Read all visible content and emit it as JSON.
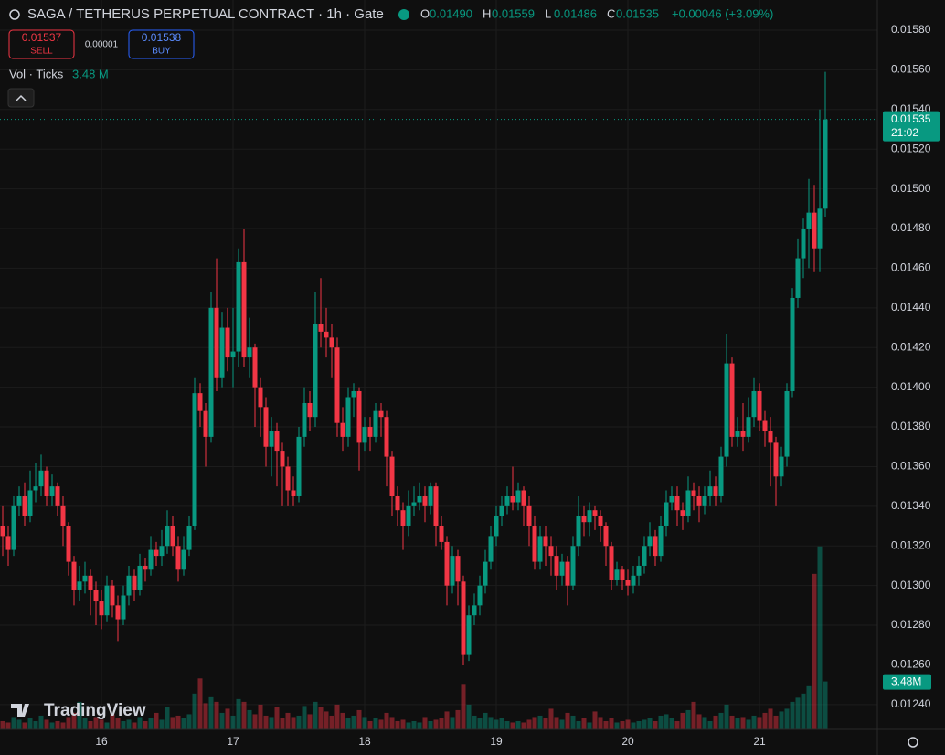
{
  "chart_data": {
    "type": "candlestick",
    "title": "SAGA / TETHERUS PERPETUAL CONTRACT · 1h · Gate",
    "ohlc_legend": [
      {
        "key": "O",
        "value": "0.01490"
      },
      {
        "key": "H",
        "value": "0.01559"
      },
      {
        "key": "L",
        "value": "0.01486"
      },
      {
        "key": "C",
        "value": "0.01535"
      }
    ],
    "change": "+0.00046 (+3.09%)",
    "order_buttons": {
      "sell_price": "0.01537",
      "sell_label": "SELL",
      "spread": "0.00001",
      "buy_price": "0.01538",
      "buy_label": "BUY"
    },
    "last_price_label": "0.01535",
    "countdown": "21:02",
    "watermark": "TradingView",
    "up_color": "#089981",
    "down_color": "#f23645",
    "grid": true,
    "ylim": [
      0.012275,
      0.015952
    ],
    "yticks": [
      {
        "value": 0.0124,
        "label": "0.01240"
      },
      {
        "value": 0.0126,
        "label": "0.01260"
      },
      {
        "value": 0.0128,
        "label": "0.01280"
      },
      {
        "value": 0.013,
        "label": "0.01300"
      },
      {
        "value": 0.0132,
        "label": "0.01320"
      },
      {
        "value": 0.0134,
        "label": "0.01340"
      },
      {
        "value": 0.0136,
        "label": "0.01360"
      },
      {
        "value": 0.0138,
        "label": "0.01380"
      },
      {
        "value": 0.014,
        "label": "0.01400"
      },
      {
        "value": 0.0142,
        "label": "0.01420"
      },
      {
        "value": 0.0144,
        "label": "0.01440"
      },
      {
        "value": 0.0146,
        "label": "0.01460"
      },
      {
        "value": 0.0148,
        "label": "0.01480"
      },
      {
        "value": 0.015,
        "label": "0.01500"
      },
      {
        "value": 0.0152,
        "label": "0.01520"
      },
      {
        "value": 0.0154,
        "label": "0.01540"
      },
      {
        "value": 0.0156,
        "label": "0.01560"
      },
      {
        "value": 0.0158,
        "label": "0.01580"
      }
    ],
    "categories": [
      null,
      null,
      null,
      null,
      null,
      null,
      null,
      null,
      null,
      null,
      null,
      null,
      null,
      null,
      null,
      null,
      null,
      null,
      "16",
      null,
      null,
      null,
      null,
      null,
      null,
      null,
      null,
      null,
      null,
      null,
      null,
      null,
      null,
      null,
      null,
      null,
      null,
      null,
      null,
      null,
      null,
      null,
      "17",
      null,
      null,
      null,
      null,
      null,
      null,
      null,
      null,
      null,
      null,
      null,
      null,
      null,
      null,
      null,
      null,
      null,
      null,
      null,
      null,
      null,
      null,
      null,
      "18",
      null,
      null,
      null,
      null,
      null,
      null,
      null,
      null,
      null,
      null,
      null,
      null,
      null,
      null,
      null,
      null,
      null,
      null,
      null,
      null,
      null,
      null,
      null,
      "19",
      null,
      null,
      null,
      null,
      null,
      null,
      null,
      null,
      null,
      null,
      null,
      null,
      null,
      null,
      null,
      null,
      null,
      null,
      null,
      null,
      null,
      null,
      null,
      "20",
      null,
      null,
      null,
      null,
      null,
      null,
      null,
      null,
      null,
      null,
      null,
      null,
      null,
      null,
      null,
      null,
      null,
      null,
      null,
      null,
      null,
      null,
      null,
      "21",
      null,
      null,
      null,
      null,
      null,
      null,
      null,
      null,
      null,
      null,
      null,
      null
    ],
    "open": [
      0.0133,
      0.01325,
      0.01318,
      0.0134,
      0.01345,
      0.01335,
      0.01348,
      0.0135,
      0.01358,
      0.01345,
      0.0135,
      0.0134,
      0.0133,
      0.01312,
      0.01298,
      0.01302,
      0.01305,
      0.01298,
      0.01292,
      0.01285,
      0.013,
      0.0129,
      0.01283,
      0.01295,
      0.01305,
      0.01298,
      0.0131,
      0.01308,
      0.01318,
      0.01315,
      0.0132,
      0.0133,
      0.0132,
      0.01308,
      0.01318,
      0.0133,
      0.01397,
      0.01388,
      0.01375,
      0.0144,
      0.01405,
      0.0143,
      0.01415,
      0.01418,
      0.01463,
      0.01415,
      0.0142,
      0.014,
      0.0139,
      0.0137,
      0.01378,
      0.01368,
      0.0136,
      0.01348,
      0.01345,
      0.01375,
      0.01392,
      0.01385,
      0.01432,
      0.01428,
      0.01425,
      0.0142,
      0.01382,
      0.01375,
      0.01395,
      0.01398,
      0.01372,
      0.0138,
      0.01375,
      0.01388,
      0.01385,
      0.01365,
      0.01345,
      0.01338,
      0.0133,
      0.0134,
      0.01342,
      0.01345,
      0.0134,
      0.0135,
      0.0133,
      0.01322,
      0.013,
      0.01315,
      0.01302,
      0.01265,
      0.01285,
      0.0129,
      0.013,
      0.01312,
      0.01325,
      0.01335,
      0.0134,
      0.01345,
      0.01342,
      0.01348,
      0.0134,
      0.0133,
      0.01312,
      0.01325,
      0.0132,
      0.01315,
      0.01305,
      0.01312,
      0.013,
      0.0132,
      0.01335,
      0.01332,
      0.01338,
      0.01335,
      0.0133,
      0.0132,
      0.01303,
      0.01308,
      0.01303,
      0.013,
      0.01305,
      0.0131,
      0.0132,
      0.01325,
      0.01315,
      0.0133,
      0.01342,
      0.01345,
      0.01338,
      0.01335,
      0.01348,
      0.01345,
      0.0134,
      0.01345,
      0.0135,
      0.01345,
      0.01365,
      0.01412,
      0.01375,
      0.01378,
      0.01375,
      0.01385,
      0.01398,
      0.01383,
      0.01378,
      0.01372,
      0.01355,
      0.01365,
      0.01398,
      0.01445,
      0.01465,
      0.0148,
      0.01488,
      0.0147,
      0.0149
    ],
    "high": [
      0.0134,
      0.0133,
      0.01345,
      0.0135,
      0.01352,
      0.01358,
      0.01362,
      0.01366,
      0.0136,
      0.01356,
      0.01352,
      0.01345,
      0.01332,
      0.01315,
      0.0131,
      0.01312,
      0.01308,
      0.01302,
      0.01298,
      0.01305,
      0.01303,
      0.01295,
      0.013,
      0.0131,
      0.01308,
      0.01316,
      0.01314,
      0.01325,
      0.01322,
      0.01328,
      0.01338,
      0.01335,
      0.01325,
      0.01325,
      0.01335,
      0.01405,
      0.01402,
      0.01392,
      0.01448,
      0.01465,
      0.01438,
      0.0144,
      0.0144,
      0.0147,
      0.0148,
      0.01435,
      0.01422,
      0.01405,
      0.01395,
      0.01385,
      0.01382,
      0.01372,
      0.01365,
      0.01355,
      0.0138,
      0.014,
      0.01398,
      0.01448,
      0.01455,
      0.0144,
      0.01432,
      0.01425,
      0.0139,
      0.014,
      0.01402,
      0.014,
      0.01385,
      0.01385,
      0.01392,
      0.01392,
      0.01388,
      0.01368,
      0.0135,
      0.01342,
      0.01348,
      0.0135,
      0.01352,
      0.0135,
      0.01352,
      0.01352,
      0.01335,
      0.01325,
      0.0132,
      0.01318,
      0.01305,
      0.0129,
      0.01296,
      0.01305,
      0.01318,
      0.0133,
      0.0134,
      0.01345,
      0.0135,
      0.0136,
      0.01352,
      0.0135,
      0.01345,
      0.01335,
      0.0133,
      0.0133,
      0.01325,
      0.0132,
      0.01316,
      0.01315,
      0.01325,
      0.01345,
      0.0134,
      0.01342,
      0.0134,
      0.01338,
      0.01332,
      0.01322,
      0.01312,
      0.0131,
      0.01308,
      0.0131,
      0.01315,
      0.01325,
      0.01332,
      0.01328,
      0.01335,
      0.01348,
      0.0135,
      0.0135,
      0.01342,
      0.01355,
      0.01352,
      0.0135,
      0.0135,
      0.01358,
      0.01355,
      0.0137,
      0.01427,
      0.01415,
      0.01385,
      0.01392,
      0.01395,
      0.01405,
      0.01402,
      0.01388,
      0.01385,
      0.01375,
      0.0137,
      0.01402,
      0.0145,
      0.01475,
      0.01485,
      0.01505,
      0.01502,
      0.0154,
      0.01559
    ],
    "low": [
      0.01315,
      0.0131,
      0.01315,
      0.01335,
      0.0133,
      0.01332,
      0.01342,
      0.01345,
      0.0134,
      0.0134,
      0.01335,
      0.0132,
      0.01305,
      0.0129,
      0.01292,
      0.01296,
      0.01285,
      0.0128,
      0.01278,
      0.01282,
      0.01284,
      0.01272,
      0.0128,
      0.0129,
      0.01292,
      0.01295,
      0.01302,
      0.01305,
      0.0131,
      0.0131,
      0.01316,
      0.01315,
      0.01302,
      0.01305,
      0.01315,
      0.01328,
      0.0138,
      0.0136,
      0.01372,
      0.01398,
      0.014,
      0.01408,
      0.014,
      0.0141,
      0.0141,
      0.01405,
      0.0138,
      0.01375,
      0.0136,
      0.01355,
      0.0135,
      0.0134,
      0.0134,
      0.0134,
      0.01342,
      0.0137,
      0.01378,
      0.0138,
      0.0142,
      0.01415,
      0.01405,
      0.01375,
      0.01368,
      0.0137,
      0.01385,
      0.01358,
      0.01368,
      0.01368,
      0.01372,
      0.01375,
      0.0135,
      0.01335,
      0.0133,
      0.01318,
      0.01325,
      0.01335,
      0.01338,
      0.01332,
      0.01336,
      0.0132,
      0.01318,
      0.0129,
      0.01296,
      0.0129,
      0.0126,
      0.01262,
      0.0128,
      0.01285,
      0.01296,
      0.01308,
      0.0132,
      0.0133,
      0.01336,
      0.01338,
      0.01338,
      0.0133,
      0.0132,
      0.01308,
      0.01308,
      0.0131,
      0.01305,
      0.01298,
      0.013,
      0.0129,
      0.01298,
      0.01315,
      0.01325,
      0.01325,
      0.01328,
      0.01322,
      0.0131,
      0.01298,
      0.013,
      0.01298,
      0.01295,
      0.01296,
      0.013,
      0.01306,
      0.01315,
      0.0131,
      0.01312,
      0.01325,
      0.01338,
      0.0133,
      0.01328,
      0.01332,
      0.01338,
      0.01332,
      0.01336,
      0.0134,
      0.0134,
      0.01342,
      0.0136,
      0.0137,
      0.0137,
      0.01368,
      0.01372,
      0.0138,
      0.01378,
      0.0137,
      0.0135,
      0.0134,
      0.0135,
      0.0136,
      0.01395,
      0.0144,
      0.01455,
      0.0146,
      0.01458,
      0.01458,
      0.01486
    ],
    "close": [
      0.01325,
      0.01318,
      0.0134,
      0.01345,
      0.01335,
      0.01348,
      0.0135,
      0.01358,
      0.01345,
      0.0135,
      0.0134,
      0.0133,
      0.01312,
      0.01298,
      0.01302,
      0.01305,
      0.01298,
      0.01292,
      0.01285,
      0.013,
      0.0129,
      0.01283,
      0.01295,
      0.01305,
      0.01298,
      0.0131,
      0.01308,
      0.01318,
      0.01315,
      0.0132,
      0.0133,
      0.0132,
      0.01308,
      0.01318,
      0.0133,
      0.01397,
      0.01388,
      0.01375,
      0.0144,
      0.01405,
      0.0143,
      0.01415,
      0.01418,
      0.01463,
      0.01415,
      0.0142,
      0.014,
      0.0139,
      0.0137,
      0.01378,
      0.01368,
      0.0136,
      0.01348,
      0.01345,
      0.01375,
      0.01392,
      0.01385,
      0.01432,
      0.01428,
      0.01425,
      0.0142,
      0.01382,
      0.01375,
      0.01395,
      0.01398,
      0.01372,
      0.0138,
      0.01375,
      0.01388,
      0.01385,
      0.01365,
      0.01345,
      0.01338,
      0.0133,
      0.0134,
      0.01342,
      0.01345,
      0.0134,
      0.0135,
      0.0133,
      0.01322,
      0.013,
      0.01315,
      0.01302,
      0.01265,
      0.01285,
      0.0129,
      0.013,
      0.01312,
      0.01325,
      0.01335,
      0.0134,
      0.01345,
      0.01342,
      0.01348,
      0.0134,
      0.0133,
      0.01312,
      0.01325,
      0.0132,
      0.01315,
      0.01305,
      0.01312,
      0.013,
      0.0132,
      0.01335,
      0.01332,
      0.01338,
      0.01335,
      0.0133,
      0.0132,
      0.01303,
      0.01308,
      0.01303,
      0.013,
      0.01305,
      0.0131,
      0.0132,
      0.01325,
      0.01315,
      0.0133,
      0.01342,
      0.01345,
      0.01338,
      0.01335,
      0.01348,
      0.01345,
      0.0134,
      0.01345,
      0.0135,
      0.01345,
      0.01365,
      0.01412,
      0.01375,
      0.01378,
      0.01375,
      0.01385,
      0.01398,
      0.01383,
      0.01378,
      0.01372,
      0.01355,
      0.01365,
      0.01398,
      0.01445,
      0.01465,
      0.0148,
      0.01488,
      0.0147,
      0.0149,
      0.01535
    ],
    "volume": {
      "name": "Vol · Ticks",
      "legend_value": "3.48 M",
      "axis_label": "3.48M",
      "ylim": [
        0,
        53
      ],
      "values": [
        0.6,
        0.5,
        0.9,
        0.7,
        0.5,
        0.8,
        0.6,
        1.0,
        0.7,
        0.5,
        0.6,
        0.5,
        0.9,
        1.2,
        2.0,
        0.8,
        0.6,
        0.9,
        0.7,
        0.5,
        1.1,
        0.8,
        0.6,
        0.7,
        0.5,
        0.9,
        0.6,
        0.8,
        1.2,
        0.7,
        1.6,
        0.9,
        1.0,
        0.8,
        1.1,
        2.6,
        3.7,
        1.9,
        2.4,
        2.0,
        1.2,
        1.5,
        1.0,
        2.2,
        2.0,
        1.4,
        1.1,
        1.8,
        1.0,
        0.9,
        1.6,
        0.8,
        1.2,
        0.9,
        1.0,
        1.7,
        1.1,
        2.0,
        1.6,
        1.3,
        1.0,
        1.8,
        1.2,
        0.8,
        1.0,
        1.4,
        0.9,
        0.6,
        0.8,
        0.7,
        1.2,
        0.9,
        0.6,
        0.7,
        0.5,
        0.6,
        0.5,
        0.9,
        0.6,
        0.7,
        0.8,
        1.3,
        0.9,
        1.4,
        3.3,
        1.8,
        1.0,
        0.8,
        1.2,
        0.9,
        0.7,
        0.8,
        0.6,
        0.5,
        0.6,
        0.5,
        0.7,
        0.9,
        1.0,
        0.8,
        1.5,
        0.9,
        0.7,
        1.2,
        1.0,
        0.6,
        0.8,
        0.5,
        1.3,
        0.9,
        0.6,
        0.8,
        0.5,
        0.6,
        0.7,
        0.5,
        0.6,
        0.7,
        0.8,
        0.6,
        1.0,
        1.1,
        0.8,
        0.6,
        1.2,
        1.4,
        2.0,
        1.1,
        0.9,
        0.6,
        1.0,
        1.2,
        1.8,
        1.0,
        0.8,
        0.9,
        0.7,
        1.0,
        0.9,
        1.2,
        1.5,
        1.0,
        1.3,
        1.5,
        2.0,
        2.3,
        2.6,
        3.2,
        11.3,
        13.3,
        3.48
      ]
    }
  }
}
